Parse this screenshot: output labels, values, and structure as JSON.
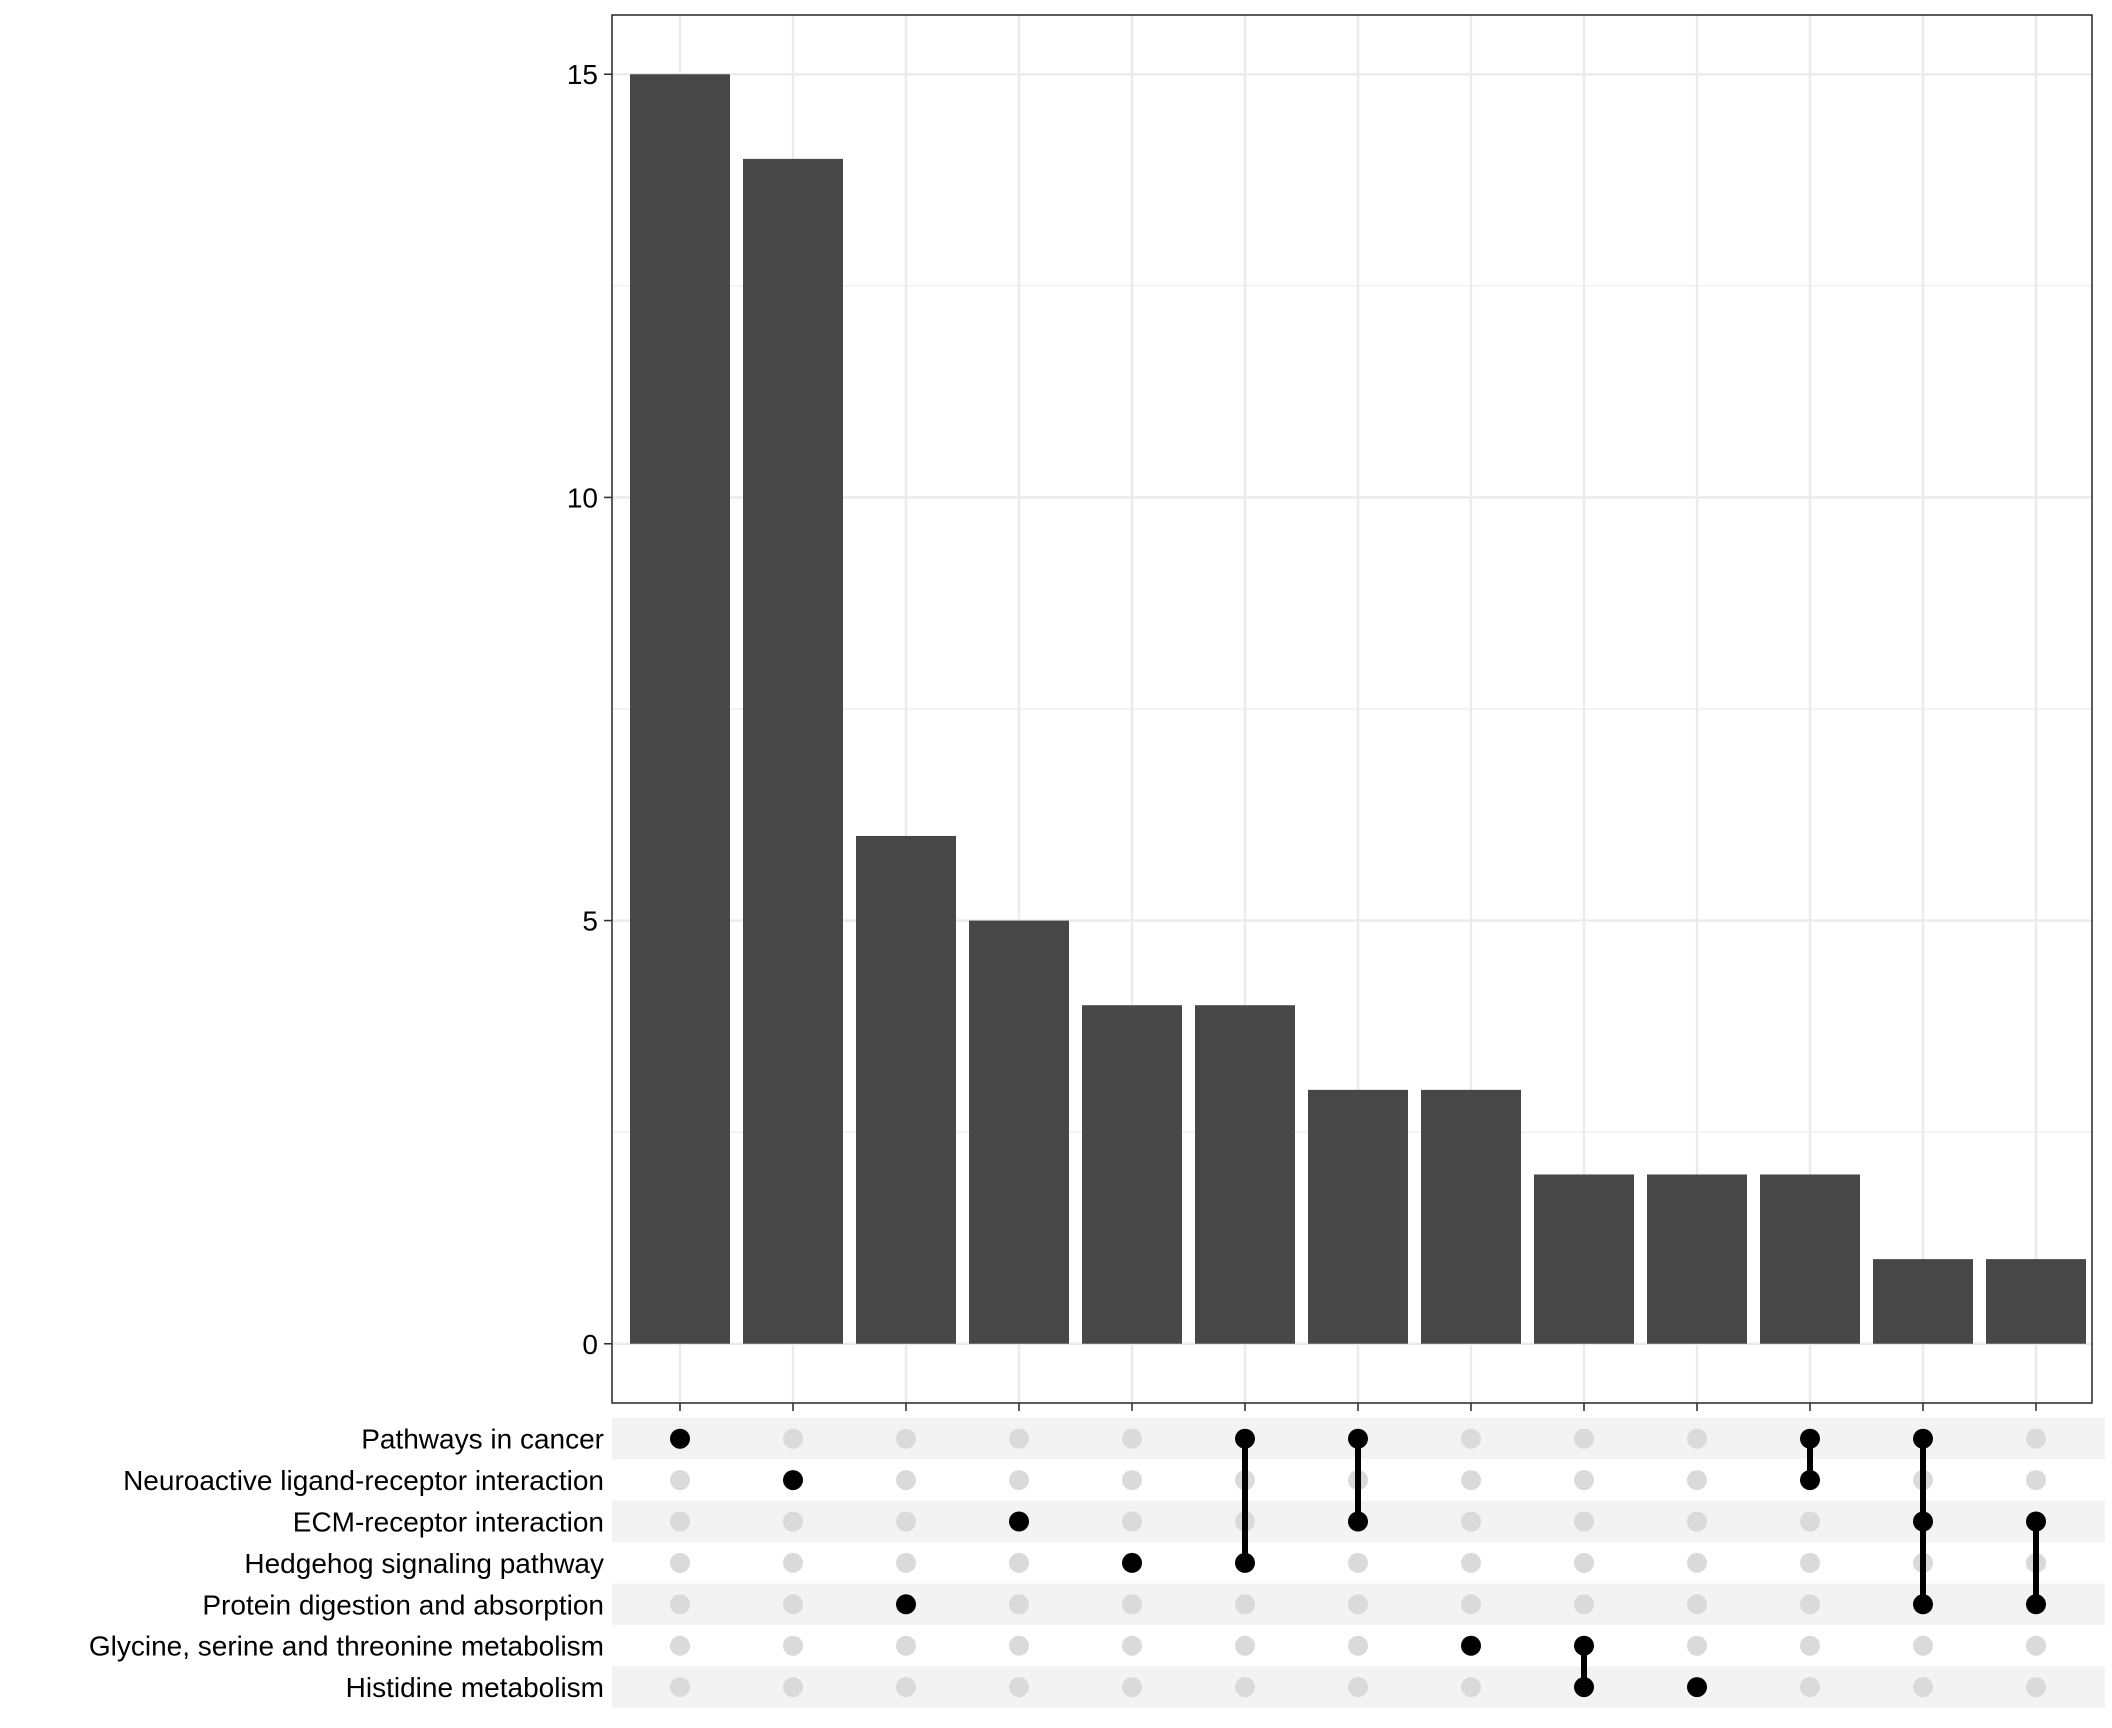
{
  "chart_data": {
    "type": "bar",
    "title": "",
    "xlabel": "",
    "ylabel": "",
    "ylim": [
      -0.7,
      15.7
    ],
    "yticks": [
      0,
      5,
      10,
      15
    ],
    "grid": true,
    "colors": {
      "bar": "#474747",
      "dot_active": "#000000",
      "dot_inactive": "#dadada",
      "stripe": "#f3f3f3",
      "grid": "#ebebeb"
    },
    "sets": [
      "Pathways in cancer",
      "Neuroactive ligand-receptor interaction",
      "ECM-receptor interaction",
      "Hedgehog signaling pathway",
      "Protein digestion and absorption",
      "Glycine, serine and threonine metabolism",
      "Histidine metabolism"
    ],
    "intersections": [
      {
        "value": 15,
        "sets": [
          "Pathways in cancer"
        ]
      },
      {
        "value": 14,
        "sets": [
          "Neuroactive ligand-receptor interaction"
        ]
      },
      {
        "value": 6,
        "sets": [
          "Protein digestion and absorption"
        ]
      },
      {
        "value": 5,
        "sets": [
          "ECM-receptor interaction"
        ]
      },
      {
        "value": 4,
        "sets": [
          "Hedgehog signaling pathway"
        ]
      },
      {
        "value": 4,
        "sets": [
          "Pathways in cancer",
          "Hedgehog signaling pathway"
        ]
      },
      {
        "value": 3,
        "sets": [
          "Pathways in cancer",
          "ECM-receptor interaction"
        ]
      },
      {
        "value": 3,
        "sets": [
          "Glycine, serine and threonine metabolism"
        ]
      },
      {
        "value": 2,
        "sets": [
          "Glycine, serine and threonine metabolism",
          "Histidine metabolism"
        ]
      },
      {
        "value": 2,
        "sets": [
          "Histidine metabolism"
        ]
      },
      {
        "value": 2,
        "sets": [
          "Pathways in cancer",
          "Neuroactive ligand-receptor interaction"
        ]
      },
      {
        "value": 1,
        "sets": [
          "Pathways in cancer",
          "ECM-receptor interaction",
          "Protein digestion and absorption"
        ]
      },
      {
        "value": 1,
        "sets": [
          "ECM-receptor interaction",
          "Protein digestion and absorption"
        ]
      }
    ]
  }
}
